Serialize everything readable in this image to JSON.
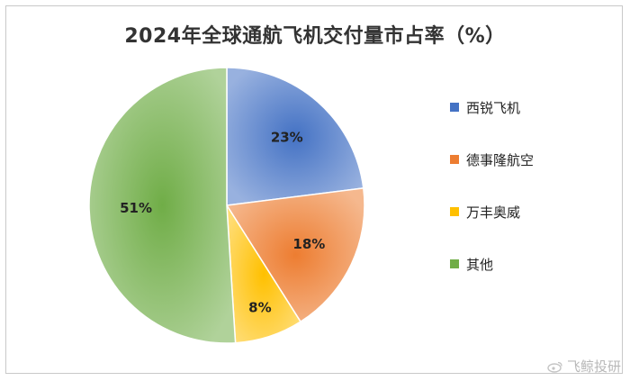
{
  "chart_data": {
    "type": "pie",
    "title": "2024年全球通航飞机交付量市占率（%）",
    "categories": [
      "西锐飞机",
      "德事隆航空",
      "万丰奥威",
      "其他"
    ],
    "values": [
      23,
      18,
      8,
      51
    ],
    "labels": [
      "23%",
      "18%",
      "8%",
      "51%"
    ],
    "colors": [
      "#4472c4",
      "#ed7d31",
      "#ffc000",
      "#70ad47"
    ],
    "start_angle_deg": 0,
    "direction": "clockwise",
    "legend_position": "right"
  },
  "watermark": {
    "text": "飞鲸投研",
    "icon": "weibo-icon"
  }
}
